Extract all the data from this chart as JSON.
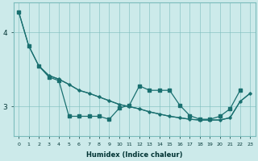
{
  "background_color": "#cceaea",
  "grid_color": "#7bbcbc",
  "line_color": "#1a7070",
  "x_label": "Humidex (Indice chaleur)",
  "xlim": [
    -0.5,
    23.5
  ],
  "ylim": [
    2.6,
    4.4
  ],
  "yticks": [
    3,
    4
  ],
  "xticks": [
    0,
    1,
    2,
    3,
    4,
    5,
    6,
    7,
    8,
    9,
    10,
    11,
    12,
    13,
    14,
    15,
    16,
    17,
    18,
    19,
    20,
    21,
    22,
    23
  ],
  "series1_x": [
    0,
    1,
    2,
    3,
    4,
    5,
    6,
    7,
    8,
    9,
    10,
    11,
    12,
    13,
    14,
    15,
    16,
    17,
    18,
    19,
    20,
    21,
    22
  ],
  "series1_y": [
    4.28,
    3.82,
    3.55,
    3.4,
    3.35,
    2.87,
    2.87,
    2.87,
    2.87,
    2.83,
    2.98,
    3.02,
    3.28,
    3.22,
    3.22,
    3.22,
    3.02,
    2.88,
    2.83,
    2.83,
    2.87,
    2.97,
    3.22
  ],
  "series2_x": [
    2,
    3,
    4,
    5,
    6,
    7,
    8,
    9,
    10,
    11,
    12,
    13,
    14,
    15,
    16,
    17,
    18,
    19,
    20,
    21,
    22,
    23
  ],
  "series2_y": [
    3.55,
    3.42,
    3.37,
    3.3,
    3.22,
    3.18,
    3.13,
    3.08,
    3.03,
    3.0,
    2.97,
    2.93,
    2.9,
    2.87,
    2.85,
    2.83,
    2.82,
    2.82,
    2.82,
    2.85,
    3.07,
    3.18
  ],
  "series3_x": [
    0,
    1,
    2,
    3,
    4,
    5,
    6,
    7,
    8,
    9,
    10,
    11,
    12,
    13,
    14,
    15,
    16,
    17,
    18,
    19,
    20,
    21,
    22,
    23
  ],
  "series3_y": [
    4.28,
    3.82,
    3.55,
    3.42,
    3.37,
    3.3,
    3.22,
    3.18,
    3.13,
    3.08,
    3.03,
    3.0,
    2.97,
    2.93,
    2.9,
    2.87,
    2.85,
    2.83,
    2.82,
    2.82,
    2.82,
    2.85,
    3.07,
    3.18
  ]
}
